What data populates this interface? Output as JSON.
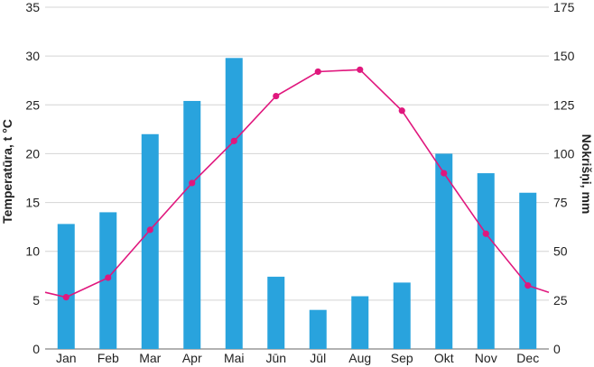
{
  "chart_data": {
    "type": "bar",
    "categories": [
      "Jan",
      "Feb",
      "Mar",
      "Apr",
      "Mai",
      "Jūn",
      "Jūl",
      "Aug",
      "Sep",
      "Okt",
      "Nov",
      "Dec"
    ],
    "series": [
      {
        "type": "bar",
        "axis": "right",
        "values": [
          64,
          70,
          110,
          127,
          149,
          37,
          20,
          27,
          34,
          100,
          90,
          80
        ],
        "color": "#29a3dd"
      },
      {
        "type": "line",
        "axis": "left",
        "values": [
          5.3,
          7.3,
          12.2,
          17.0,
          21.3,
          25.9,
          28.4,
          28.6,
          24.4,
          18.0,
          11.8,
          6.5
        ],
        "color": "#e0177d"
      }
    ],
    "ylabel": "Temperatūra, t °C",
    "ylim": [
      0,
      35
    ],
    "yticks": [
      0,
      5,
      10,
      15,
      20,
      25,
      30,
      35
    ],
    "y2label": "Nokrišņi, mm",
    "y2lim": [
      0,
      175
    ],
    "y2ticks": [
      0,
      25,
      50,
      75,
      100,
      125,
      150,
      175
    ],
    "line_edge_values": [
      5.8,
      5.8
    ],
    "grid": true
  }
}
